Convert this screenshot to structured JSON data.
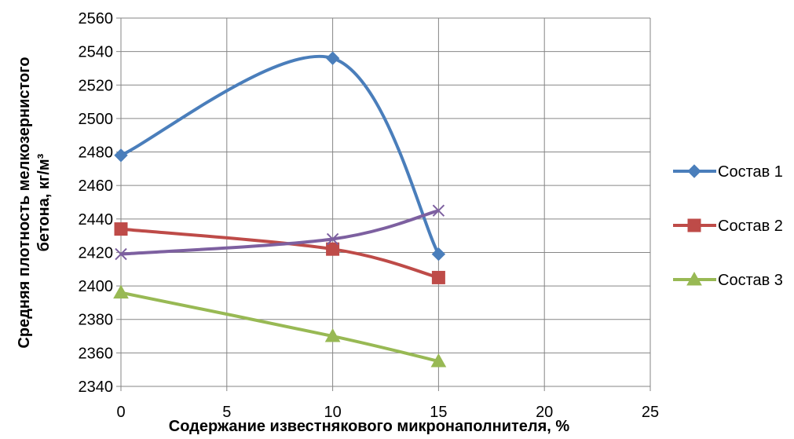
{
  "chart_data": {
    "type": "line",
    "smooth": true,
    "xlabel": "Содержание известнякового микронаполнителя, %",
    "ylabel_lines": [
      "Средняя плотность мелкозернистого",
      "бетона, кг/м³"
    ],
    "xlim": [
      0,
      25
    ],
    "ylim": [
      2340,
      2560
    ],
    "x_ticks": [
      "0",
      "5",
      "10",
      "15",
      "20",
      "25"
    ],
    "y_ticks": [
      "2340",
      "2360",
      "2380",
      "2400",
      "2420",
      "2440",
      "2460",
      "2480",
      "2500",
      "2520",
      "2540",
      "2560"
    ],
    "grid": true,
    "legend_position": "right",
    "series": [
      {
        "name": "Состав 1",
        "color": "#4a7ebb",
        "marker": "diamond",
        "x": [
          0,
          10,
          15
        ],
        "y": [
          2478,
          2536,
          2419
        ]
      },
      {
        "name": "Состав 2",
        "color": "#be4b48",
        "marker": "square",
        "x": [
          0,
          10,
          15
        ],
        "y": [
          2434,
          2422,
          2405
        ]
      },
      {
        "name": "Состав 3",
        "color": "#98b954",
        "marker": "triangle",
        "x": [
          0,
          10,
          15
        ],
        "y": [
          2396,
          2370,
          2355
        ]
      },
      {
        "color": "#7d60a0",
        "marker": "x",
        "x": [
          0,
          10,
          15
        ],
        "y": [
          2419,
          2428,
          2445
        ]
      }
    ]
  }
}
